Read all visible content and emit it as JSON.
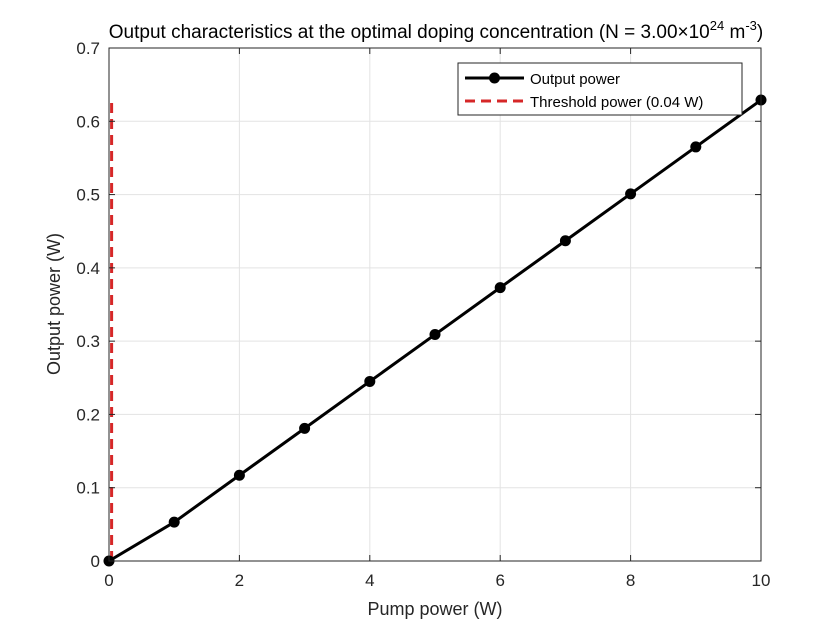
{
  "chart_data": {
    "type": "line",
    "title": {
      "prefix": "Output characteristics at the optimal doping concentration (N = 3.00×10",
      "exp1": "24",
      "middle": " m",
      "exp2": "-3",
      "suffix": ")"
    },
    "xlabel": "Pump power (W)",
    "ylabel": "Output power (W)",
    "xlim": [
      0,
      10
    ],
    "ylim": [
      0,
      0.7
    ],
    "xticks": [
      0,
      2,
      4,
      6,
      8,
      10
    ],
    "xtick_labels": [
      "0",
      "2",
      "4",
      "6",
      "8",
      "10"
    ],
    "yticks": [
      0,
      0.1,
      0.2,
      0.3,
      0.4,
      0.5,
      0.6,
      0.7
    ],
    "ytick_labels": [
      "0",
      "0.1",
      "0.2",
      "0.3",
      "0.4",
      "0.5",
      "0.6",
      "0.7"
    ],
    "grid": true,
    "legend_position": "top-right",
    "series": [
      {
        "name": "Output power",
        "color": "#000000",
        "style": "solid-with-markers",
        "x": [
          0,
          1,
          2,
          3,
          4,
          5,
          6,
          7,
          8,
          9,
          10
        ],
        "y": [
          0,
          0.053,
          0.117,
          0.181,
          0.245,
          0.309,
          0.373,
          0.437,
          0.501,
          0.565,
          0.629
        ]
      },
      {
        "name": "Threshold power (0.04 W)",
        "color": "#d62728",
        "style": "dashed",
        "x": [
          0.04,
          0.04
        ],
        "y": [
          0,
          0.629
        ]
      }
    ]
  }
}
